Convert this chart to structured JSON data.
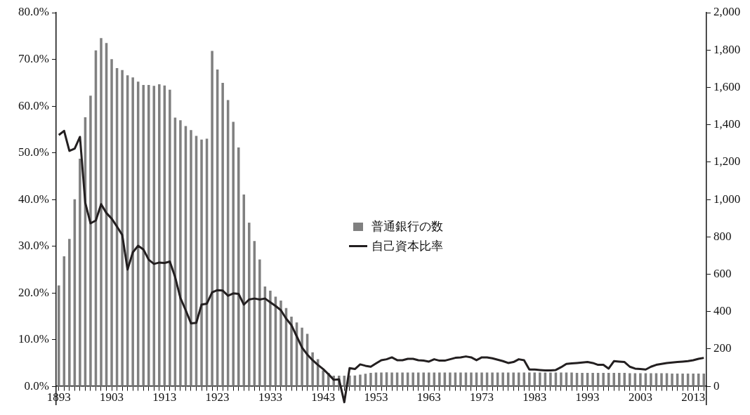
{
  "chart_data": {
    "type": "bar",
    "categories": [
      "1893",
      null,
      null,
      null,
      null,
      null,
      null,
      null,
      null,
      null,
      "1903",
      null,
      null,
      null,
      null,
      null,
      null,
      null,
      null,
      null,
      "1913",
      null,
      null,
      null,
      null,
      null,
      null,
      null,
      null,
      null,
      "1923",
      null,
      null,
      null,
      null,
      null,
      null,
      null,
      null,
      null,
      "1933",
      null,
      null,
      null,
      null,
      null,
      null,
      null,
      null,
      null,
      "1943",
      null,
      null,
      null,
      null,
      null,
      null,
      null,
      null,
      null,
      "1953",
      null,
      null,
      null,
      null,
      null,
      null,
      null,
      null,
      null,
      "1963",
      null,
      null,
      null,
      null,
      null,
      null,
      null,
      null,
      null,
      "1973",
      null,
      null,
      null,
      null,
      null,
      null,
      null,
      null,
      null,
      "1983",
      null,
      null,
      null,
      null,
      null,
      null,
      null,
      null,
      null,
      "1993",
      null,
      null,
      null,
      null,
      null,
      null,
      null,
      null,
      null,
      "2003",
      null,
      null,
      null,
      null,
      null,
      null,
      null,
      null,
      null,
      "2013",
      null,
      null
    ],
    "series": [
      {
        "name": "普通銀行の数",
        "axis": "y2",
        "color": "#808080",
        "values": [
          540,
          696,
          789,
          1001,
          1218,
          1440,
          1556,
          1798,
          1864,
          1837,
          1751,
          1703,
          1693,
          1665,
          1653,
          1631,
          1613,
          1613,
          1608,
          1617,
          1610,
          1588,
          1438,
          1424,
          1393,
          1371,
          1340,
          1321,
          1325,
          1795,
          1696,
          1624,
          1532,
          1416,
          1278,
          1027,
          876,
          778,
          679,
          534,
          512,
          480,
          459,
          419,
          373,
          342,
          314,
          281,
          182,
          145,
          85,
          72,
          57,
          57,
          57,
          58,
          58,
          63,
          67,
          72,
          74,
          74,
          75,
          74,
          74,
          74,
          74,
          74,
          74,
          74,
          74,
          74,
          74,
          74,
          74,
          74,
          74,
          74,
          74,
          74,
          74,
          74,
          74,
          74,
          74,
          74,
          74,
          74,
          74,
          74,
          74,
          74,
          74,
          74,
          74,
          74,
          74,
          74,
          72,
          72,
          72,
          72,
          72,
          72,
          72,
          72,
          72,
          72,
          70,
          70,
          70,
          70,
          70,
          70,
          70,
          70,
          68,
          68,
          68,
          68,
          68,
          68,
          68
        ]
      },
      {
        "name": "自己資本比率",
        "type": "line",
        "axis": "y",
        "color": "#231f20",
        "values": [
          53.8,
          54.7,
          50.4,
          50.9,
          53.4,
          39.3,
          34.9,
          35.5,
          39.0,
          37.1,
          35.9,
          34.2,
          32.4,
          25.0,
          28.7,
          30.1,
          29.3,
          27.1,
          26.2,
          26.5,
          26.4,
          26.7,
          23.4,
          18.9,
          16.3,
          13.5,
          13.6,
          17.5,
          17.7,
          20.1,
          20.6,
          20.5,
          19.4,
          19.9,
          19.8,
          17.5,
          18.6,
          18.8,
          18.6,
          18.8,
          18.0,
          17.2,
          16.3,
          14.5,
          13.1,
          10.7,
          8.3,
          6.8,
          5.6,
          4.6,
          3.7,
          2.6,
          1.4,
          1.5,
          -3.4,
          3.9,
          3.7,
          4.7,
          4.4,
          4.2,
          4.9,
          5.6,
          5.8,
          6.2,
          5.6,
          5.6,
          5.9,
          5.9,
          5.6,
          5.5,
          5.3,
          5.8,
          5.5,
          5.5,
          5.8,
          6.1,
          6.2,
          6.4,
          6.2,
          5.6,
          6.2,
          6.2,
          6.0,
          5.7,
          5.4,
          5.0,
          5.2,
          5.8,
          5.6,
          3.6,
          3.6,
          3.5,
          3.4,
          3.4,
          3.5,
          4.1,
          4.8,
          4.9,
          5.0,
          5.1,
          5.2,
          5.0,
          4.6,
          4.6,
          3.8,
          5.4,
          5.3,
          5.2,
          4.2,
          3.8,
          3.7,
          3.6,
          4.2,
          4.6,
          4.8,
          5.0,
          5.1,
          5.2,
          5.3,
          5.4,
          5.6,
          5.9,
          6.1
        ]
      }
    ],
    "ylim": [
      -4,
      80
    ],
    "yticks": [
      {
        "value": 0,
        "label": "0.0%"
      },
      {
        "value": 10,
        "label": "10.0%"
      },
      {
        "value": 20,
        "label": "20.0%"
      },
      {
        "value": 30,
        "label": "30.0%"
      },
      {
        "value": 40,
        "label": "40.0%"
      },
      {
        "value": 50,
        "label": "50.0%"
      },
      {
        "value": 60,
        "label": "60.0%"
      },
      {
        "value": 70,
        "label": "70.0%"
      },
      {
        "value": 80,
        "label": "80.0%"
      }
    ],
    "y2lim": [
      -100,
      2000
    ],
    "y2ticks": [
      0,
      200,
      400,
      600,
      800,
      {
        "value": 1000,
        "label": "1,000"
      },
      {
        "value": 1200,
        "label": "1,200"
      },
      {
        "value": 1400,
        "label": "1,400"
      },
      {
        "value": 1600,
        "label": "1,600"
      },
      {
        "value": 1800,
        "label": "1,800"
      },
      {
        "value": 2000,
        "label": "2,000"
      }
    ],
    "grid": false,
    "legend": "center"
  }
}
